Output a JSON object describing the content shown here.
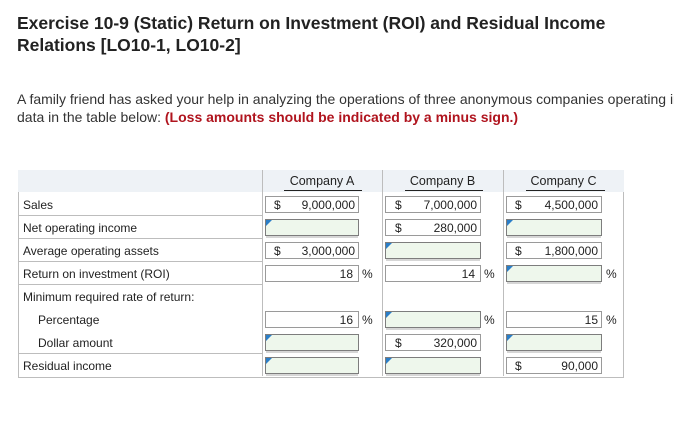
{
  "title": "Exercise 10-9 (Static) Return on Investment (ROI) and Residual Income Relations [LO10-1, LO10-2]",
  "intro": {
    "text": "A family friend has asked your help in analyzing the operations of three anonymous companies operating in the same service sector industry. Supply the missing data in the table below: ",
    "bold": "(Loss amounts should be indicated by a minus sign.)"
  },
  "table": {
    "headers": [
      "Company A",
      "Company B",
      "Company C"
    ],
    "rows": {
      "sales": "Sales",
      "net_income": "Net operating income",
      "avg_assets": "Average operating assets",
      "roi": "Return on investment (ROI)",
      "min_rate": "Minimum required rate of return:",
      "percentage": "Percentage",
      "dollar": "Dollar amount",
      "residual": "Residual income"
    },
    "symbols": {
      "dollar": "$",
      "percent": "%"
    },
    "values": {
      "a_sales": "9,000,000",
      "b_sales": "7,000,000",
      "c_sales": "4,500,000",
      "b_net_income": "280,000",
      "a_avg_assets": "3,000,000",
      "c_avg_assets": "1,800,000",
      "a_roi": "18",
      "b_roi": "14",
      "a_min_pct": "16",
      "c_min_pct": "15",
      "b_min_dollar": "320,000",
      "c_residual": "90,000"
    }
  }
}
